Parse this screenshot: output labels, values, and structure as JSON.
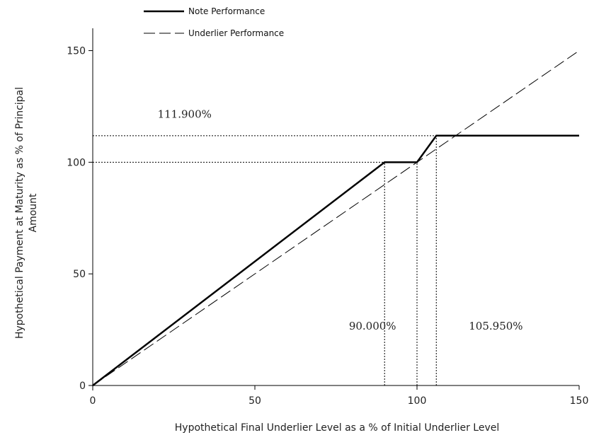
{
  "chart_data": {
    "type": "line",
    "title": "",
    "xlabel": "Hypothetical Final Underlier Level as a % of Initial Underlier Level",
    "ylabel": "Hypothetical Payment at Maturity as % of Principal Amount",
    "ylabel_lines": [
      "Hypothetical Payment at Maturity as % of Principal",
      "Amount"
    ],
    "xlim": [
      0,
      150
    ],
    "ylim": [
      0,
      160
    ],
    "xticks": [
      0,
      50,
      100,
      150
    ],
    "yticks": [
      0,
      50,
      100,
      150
    ],
    "grid": false,
    "legend_position": "top-left",
    "series": [
      {
        "name": "Note Performance",
        "style": "solid",
        "x": [
          0,
          90,
          100,
          105.95,
          150
        ],
        "y": [
          0,
          100,
          100,
          111.9,
          111.9
        ]
      },
      {
        "name": "Underlier Performance",
        "style": "dashed",
        "x": [
          0,
          150
        ],
        "y": [
          0,
          150
        ]
      }
    ],
    "reference_lines": [
      {
        "type": "horizontal",
        "y": 111.9,
        "x_from": 0,
        "x_to": 105.95
      },
      {
        "type": "horizontal",
        "y": 100,
        "x_from": 0,
        "x_to": 90
      },
      {
        "type": "vertical",
        "x": 90,
        "y_from": 0,
        "y_to": 100
      },
      {
        "type": "vertical",
        "x": 100,
        "y_from": 0,
        "y_to": 100
      },
      {
        "type": "vertical",
        "x": 105.95,
        "y_from": 0,
        "y_to": 111.9
      }
    ],
    "annotations": [
      {
        "text": "111.900%",
        "x": 20,
        "y": 120
      },
      {
        "text": "90.000%",
        "x": 79,
        "y": 25
      },
      {
        "text": "105.950%",
        "x": 116,
        "y": 25
      }
    ]
  }
}
